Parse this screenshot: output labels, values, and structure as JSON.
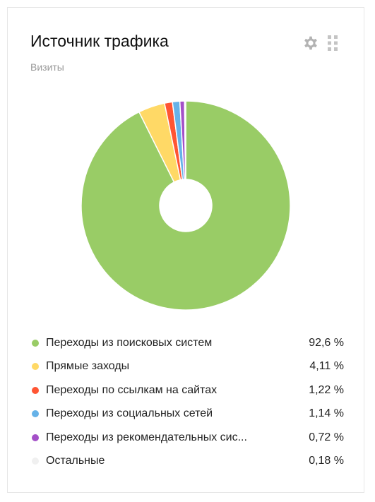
{
  "widget": {
    "title": "Источник трафика",
    "subtitle": "Визиты",
    "settings_icon": "gear-icon",
    "drag_icon": "drag-handle-icon"
  },
  "chart_data": {
    "type": "pie",
    "donut": true,
    "title": "Источник трафика",
    "subtitle": "Визиты",
    "legend_position": "bottom",
    "slices": [
      {
        "label": "Переходы из поисковых систем",
        "value": 92.6,
        "display": "92,6 %",
        "color": "#99cc66"
      },
      {
        "label": "Прямые заходы",
        "value": 4.11,
        "display": "4,11 %",
        "color": "#ffd966"
      },
      {
        "label": "Переходы по ссылкам на сайтах",
        "value": 1.22,
        "display": "1,22 %",
        "color": "#ff5533"
      },
      {
        "label": "Переходы из социальных сетей",
        "value": 1.14,
        "display": "1,14 %",
        "color": "#66b2e8"
      },
      {
        "label": "Переходы из рекомендательных сис...",
        "value": 0.72,
        "display": "0,72 %",
        "color": "#a450c8"
      },
      {
        "label": "Остальные",
        "value": 0.18,
        "display": "0,18 %",
        "color": "#f0f0f0"
      }
    ]
  }
}
